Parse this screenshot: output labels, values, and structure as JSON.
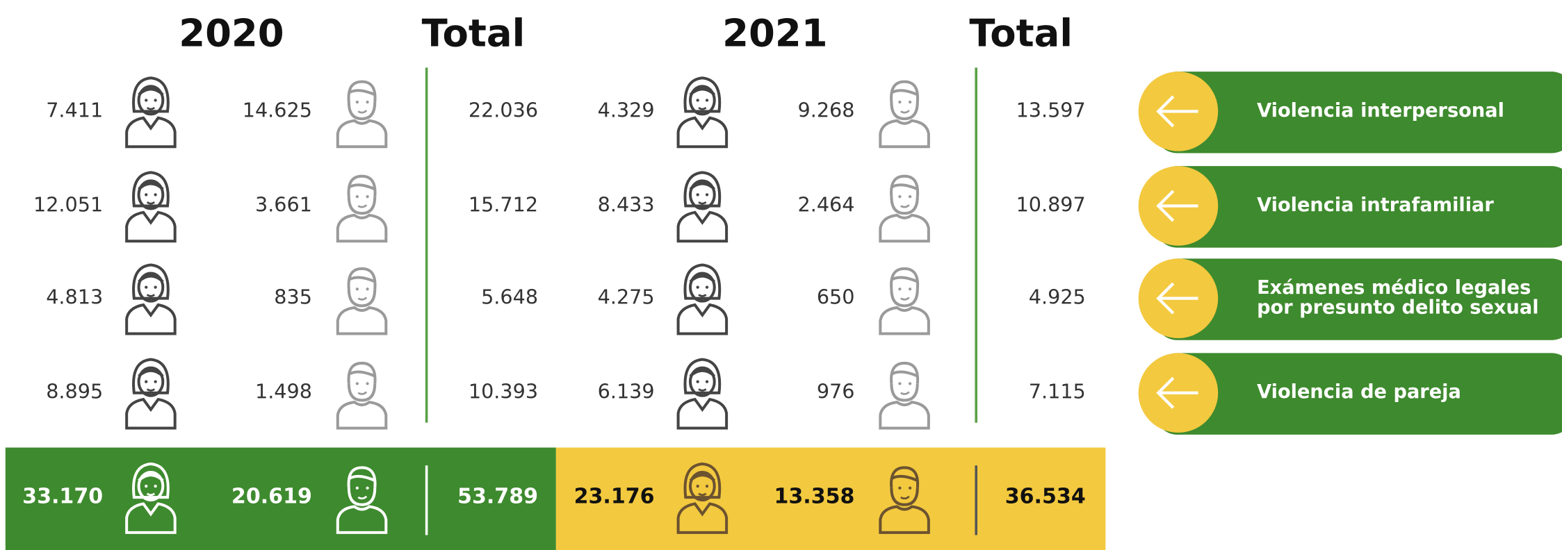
{
  "header": {
    "columns": [
      "2020",
      "Total",
      "2021",
      "Total"
    ]
  },
  "table": {
    "rows": [
      {
        "women_2020": "7.411",
        "men_2020": "14.625",
        "total_2020": "22.036",
        "women_2021": "4.329",
        "men_2021": "9.268",
        "total_2021": "13.597",
        "label": [
          "Violencia interpersonal"
        ]
      },
      {
        "women_2020": "12.051",
        "men_2020": "3.661",
        "total_2020": "15.712",
        "women_2021": "8.433",
        "men_2021": "2.464",
        "total_2021": "10.897",
        "label": [
          "Violencia intrafamiliar"
        ]
      },
      {
        "women_2020": "4.813",
        "men_2020": "835",
        "total_2020": "5.648",
        "women_2021": "4.275",
        "men_2021": "650",
        "total_2021": "4.925",
        "label": [
          "Exámenes médico legales",
          "por presunto delito sexual"
        ]
      },
      {
        "women_2020": "8.895",
        "men_2020": "1.498",
        "total_2020": "10.393",
        "women_2021": "6.139",
        "men_2021": "976",
        "total_2021": "7.115",
        "label": [
          "Violencia de pareja"
        ]
      }
    ],
    "totals": {
      "women_2020": "33.170",
      "men_2020": "20.619",
      "total_2020": "53.789",
      "women_2021": "23.176",
      "men_2021": "13.358",
      "total_2021": "36.534"
    }
  }
}
